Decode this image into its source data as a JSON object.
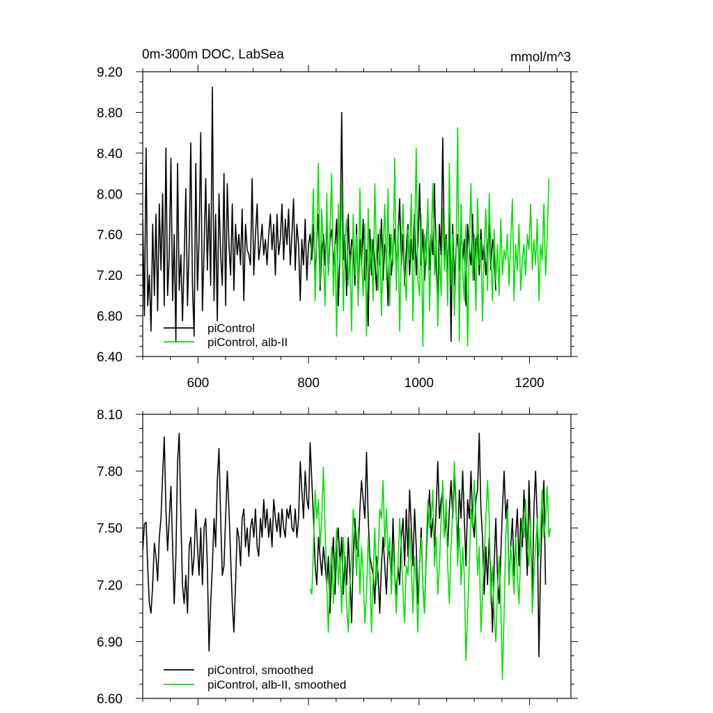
{
  "figure": {
    "title_left": "0m-300m DOC, LabSea",
    "title_right": "mmol/m^3"
  },
  "chart_data": [
    {
      "type": "line",
      "title": "0m-300m DOC, LabSea",
      "units": "mmol/m^3",
      "xlabel": "",
      "ylabel": "",
      "xlim": [
        500,
        1275
      ],
      "ylim": [
        6.4,
        9.2
      ],
      "x_ticks": [
        600,
        800,
        1000,
        1200
      ],
      "x_tick_labels": [
        "600",
        "800",
        "1000",
        "1200"
      ],
      "y_ticks": [
        6.4,
        6.8,
        7.2,
        7.6,
        8.0,
        8.4,
        8.8,
        9.2
      ],
      "y_tick_labels": [
        "6.40",
        "6.80",
        "7.20",
        "7.60",
        "8.00",
        "8.40",
        "8.80",
        "9.20"
      ],
      "grid": false,
      "legend_position": "bottom-left",
      "series": [
        {
          "name": "piControl",
          "color": "#000000",
          "x_start": 500,
          "x_step": 3,
          "values": [
            7.75,
            6.8,
            8.45,
            6.9,
            7.2,
            6.65,
            7.7,
            7.0,
            7.8,
            6.85,
            7.9,
            7.25,
            8.0,
            6.9,
            8.45,
            7.0,
            7.4,
            8.35,
            6.95,
            7.6,
            6.55,
            8.3,
            7.05,
            7.4,
            6.75,
            7.35,
            8.05,
            6.9,
            7.5,
            8.5,
            7.1,
            6.6,
            8.3,
            7.05,
            7.55,
            8.6,
            6.85,
            7.45,
            8.15,
            7.25,
            7.9,
            7.1,
            9.05,
            6.95,
            7.8,
            6.75,
            8.0,
            7.4,
            7.1,
            8.2,
            6.9,
            8.1,
            7.5,
            7.2,
            7.9,
            7.05,
            7.7,
            7.4,
            7.6,
            7.3,
            7.85,
            6.95,
            7.7,
            7.45,
            7.4,
            7.3,
            8.15,
            7.2,
            7.6,
            7.9,
            7.35,
            7.5,
            7.7,
            7.4,
            7.55,
            7.3,
            7.6,
            7.8,
            7.45,
            7.7,
            7.2,
            7.8,
            7.4,
            7.55,
            7.9,
            7.35,
            7.75,
            7.5,
            7.85,
            7.3,
            7.6,
            7.95,
            7.25,
            7.7,
            7.5,
            6.95,
            7.55,
            7.3,
            7.75,
            7.15,
            7.5,
            7.6,
            7.35,
            7.7,
            7.2,
            7.55,
            7.8,
            7.05,
            7.45,
            7.6,
            7.3,
            7.75,
            7.2,
            7.55,
            7.65,
            7.3,
            7.5,
            7.75,
            6.9,
            7.45,
            8.8,
            7.35,
            7.6,
            7.0,
            7.8,
            7.25,
            7.55,
            7.45,
            7.1,
            7.7,
            6.95,
            7.55,
            7.3,
            7.75,
            7.15,
            7.45,
            6.7,
            7.65,
            7.2,
            7.55,
            7.35,
            7.05,
            7.6,
            7.3,
            7.75,
            7.15,
            7.5,
            7.4,
            6.9,
            7.6,
            7.2,
            7.45,
            7.65,
            7.25,
            7.55,
            7.95,
            7.3,
            7.6,
            7.1,
            7.45,
            7.7,
            7.2,
            7.55,
            7.35,
            7.8,
            7.2,
            7.5,
            8.1,
            7.3,
            7.65,
            7.15,
            7.5,
            7.85,
            7.25,
            7.6,
            7.4,
            8.1,
            7.25,
            6.95,
            7.7,
            7.4,
            8.55,
            7.35,
            7.6,
            7.2,
            7.8,
            6.55,
            7.7,
            7.1,
            7.45,
            7.6,
            7.25,
            7.75,
            7.35,
            7.55,
            6.9,
            7.7,
            7.45,
            7.3,
            7.8,
            7.15,
            7.55,
            7.6,
            7.2,
            7.65,
            7.35,
            7.5,
            7.2,
            7.45,
            7.7,
            7.25,
            7.55,
            7.4,
            7.05
          ],
          "x_max_note": ""
        },
        {
          "name": "piControl, alb-II",
          "color": "#00e000",
          "x_start": 803,
          "x_step": 3,
          "values": [
            7.3,
            7.55,
            8.05,
            6.95,
            7.6,
            8.3,
            7.1,
            7.85,
            7.4,
            6.9,
            8.0,
            7.2,
            7.65,
            8.2,
            7.0,
            7.5,
            6.6,
            7.9,
            7.3,
            8.1,
            6.85,
            7.55,
            7.75,
            7.1,
            7.4,
            6.65,
            7.8,
            7.2,
            7.6,
            6.9,
            8.05,
            7.35,
            7.0,
            7.7,
            6.6,
            7.85,
            7.25,
            7.55,
            6.95,
            8.1,
            7.4,
            7.05,
            7.65,
            6.8,
            7.45,
            7.9,
            7.15,
            8.05,
            6.9,
            7.6,
            7.3,
            8.35,
            7.05,
            7.7,
            6.65,
            7.45,
            7.9,
            7.2,
            6.95,
            7.65,
            7.35,
            8.0,
            6.75,
            7.5,
            8.45,
            7.15,
            7.0,
            7.8,
            6.5,
            7.6,
            7.3,
            7.95,
            6.85,
            7.5,
            8.1,
            7.2,
            7.65,
            6.7,
            7.4,
            7.0,
            7.85,
            7.25,
            7.55,
            6.9,
            8.3,
            7.1,
            7.6,
            6.8,
            7.35,
            8.65,
            6.55,
            7.9,
            7.25,
            6.95,
            7.7,
            6.5,
            7.5,
            8.1,
            7.15,
            7.6,
            6.85,
            7.95,
            7.3,
            7.55,
            6.75,
            7.45,
            7.85,
            7.05,
            8.0,
            7.4,
            6.95,
            7.65,
            7.15,
            7.5,
            7.0,
            7.75,
            7.2,
            7.45,
            7.35,
            7.6,
            7.1,
            7.55,
            7.95,
            6.95,
            7.5,
            7.25,
            7.7,
            7.05,
            7.35,
            7.5,
            7.2,
            7.6,
            7.45,
            7.9,
            7.25,
            7.55,
            7.3,
            7.75,
            6.95,
            7.5,
            7.35,
            7.9,
            7.2,
            7.55,
            8.15
          ]
        }
      ]
    },
    {
      "type": "line",
      "xlabel": "",
      "ylabel": "",
      "xlim": [
        500,
        1275
      ],
      "ylim": [
        6.6,
        8.1
      ],
      "x_ticks": [
        600,
        800,
        1000,
        1200
      ],
      "y_ticks": [
        6.6,
        6.9,
        7.2,
        7.5,
        7.8,
        8.1
      ],
      "y_tick_labels": [
        "6.60",
        "6.90",
        "7.20",
        "7.50",
        "7.80",
        "8.10"
      ],
      "grid": false,
      "legend_position": "bottom-left",
      "series": [
        {
          "name": "piControl, smoothed",
          "color": "#000000",
          "x_start": 500,
          "x_step": 3,
          "values": [
            7.38,
            7.52,
            7.53,
            7.3,
            7.1,
            7.05,
            7.2,
            7.42,
            7.35,
            7.22,
            7.45,
            7.55,
            7.78,
            7.98,
            7.6,
            7.38,
            7.55,
            7.72,
            7.4,
            7.1,
            7.35,
            7.85,
            8.0,
            7.55,
            7.2,
            7.1,
            7.25,
            7.05,
            7.4,
            7.45,
            7.25,
            7.35,
            7.6,
            7.4,
            7.25,
            7.5,
            7.2,
            7.5,
            7.55,
            7.3,
            6.85,
            7.1,
            7.3,
            7.55,
            7.4,
            7.75,
            7.92,
            7.55,
            7.25,
            7.3,
            7.55,
            7.8,
            7.6,
            7.35,
            7.1,
            6.95,
            7.2,
            7.5,
            7.45,
            7.3,
            7.55,
            7.6,
            7.4,
            7.5,
            7.35,
            7.5,
            7.55,
            7.45,
            7.6,
            7.4,
            7.35,
            7.55,
            7.45,
            7.65,
            7.5,
            7.6,
            7.45,
            7.55,
            7.4,
            7.65,
            7.55,
            7.48,
            7.58,
            7.45,
            7.6,
            7.5,
            7.45,
            7.6,
            7.55,
            7.62,
            7.5,
            7.48,
            7.6,
            7.45,
            7.55,
            7.85,
            7.7,
            7.55,
            7.8,
            7.65,
            7.6,
            7.95,
            7.75,
            7.55,
            7.3,
            7.2,
            7.45,
            7.35,
            7.25,
            7.4,
            7.3,
            7.2,
            7.35,
            7.05,
            7.3,
            7.45,
            7.15,
            7.4,
            7.5,
            7.3,
            7.45,
            7.15,
            7.35,
            7.2,
            7.45,
            7.25,
            7.0,
            7.35,
            7.55,
            7.4,
            7.35,
            7.6,
            7.75,
            7.65,
            7.55,
            7.9,
            7.55,
            7.35,
            7.3,
            7.25,
            7.1,
            7.35,
            7.25,
            7.05,
            7.3,
            7.45,
            7.3,
            7.15,
            7.4,
            7.35,
            7.25,
            7.55,
            7.25,
            7.15,
            7.3,
            7.2,
            7.45,
            7.55,
            7.3,
            7.6,
            7.35,
            7.7,
            7.5,
            7.3,
            7.6,
            7.4,
            7.1,
            7.3,
            7.5,
            7.2,
            7.05,
            7.35,
            7.55,
            7.7,
            7.45,
            7.55,
            7.4,
            7.6,
            7.85,
            7.55,
            7.65,
            7.7,
            7.45,
            7.55,
            7.4,
            7.6,
            7.75,
            7.55,
            7.8,
            7.6,
            7.4,
            7.7,
            7.55,
            7.8,
            7.55,
            7.3,
            7.65,
            7.55,
            7.8,
            7.55,
            7.45,
            7.65,
            7.7,
            8.0,
            7.6,
            7.45,
            7.15,
            7.4,
            7.2,
            7.45,
            7.25,
            6.95,
            7.3,
            7.55,
            7.25,
            7.1,
            7.35,
            7.6,
            7.8,
            7.55,
            7.65,
            7.2,
            7.4,
            7.55,
            7.25,
            7.45,
            7.6,
            7.3,
            7.55,
            7.4,
            7.7,
            7.5,
            7.25,
            7.75,
            7.45,
            7.15,
            7.6,
            7.8,
            7.55,
            6.82,
            7.3,
            7.55,
            7.75,
            7.2
          ],
          "x_max_note": ""
        },
        {
          "name": "piControl, alb-II, smoothed",
          "color": "#00e000",
          "x_start": 803,
          "x_step": 3,
          "values": [
            7.18,
            7.15,
            7.4,
            7.7,
            7.55,
            7.65,
            7.4,
            7.55,
            7.82,
            7.5,
            7.2,
            6.95,
            7.25,
            7.4,
            7.1,
            7.3,
            7.5,
            7.2,
            7.35,
            7.05,
            7.45,
            7.3,
            7.1,
            6.95,
            7.2,
            7.35,
            7.6,
            7.45,
            7.25,
            7.5,
            7.15,
            7.4,
            7.25,
            7.0,
            7.15,
            7.45,
            7.3,
            6.95,
            7.25,
            7.5,
            7.2,
            7.35,
            7.6,
            7.55,
            7.75,
            7.4,
            7.6,
            7.35,
            7.45,
            7.15,
            7.4,
            7.25,
            7.05,
            7.3,
            7.55,
            7.4,
            7.15,
            7.0,
            7.3,
            7.25,
            7.5,
            7.3,
            7.05,
            7.35,
            7.2,
            6.95,
            7.3,
            7.45,
            7.2,
            7.05,
            7.4,
            7.65,
            7.5,
            7.55,
            7.7,
            7.3,
            7.45,
            7.15,
            7.3,
            7.55,
            7.75,
            7.45,
            7.65,
            7.3,
            7.1,
            7.4,
            7.6,
            7.85,
            7.65,
            7.3,
            7.5,
            7.2,
            7.4,
            7.25,
            6.8,
            7.05,
            7.3,
            7.6,
            7.5,
            7.75,
            7.55,
            7.25,
            7.4,
            6.95,
            7.15,
            7.35,
            7.55,
            7.75,
            7.55,
            7.1,
            7.3,
            7.05,
            6.9,
            7.15,
            7.35,
            7.1,
            6.7,
            7.05,
            7.45,
            7.6,
            7.2,
            7.4,
            7.3,
            7.15,
            7.45,
            7.25,
            7.1,
            7.35,
            7.55,
            7.45,
            7.65,
            7.4,
            7.3,
            7.55,
            7.05,
            7.25,
            7.4,
            7.55,
            7.35,
            7.5,
            7.7,
            7.45,
            7.55,
            7.72,
            7.45,
            7.5
          ]
        }
      ]
    }
  ]
}
